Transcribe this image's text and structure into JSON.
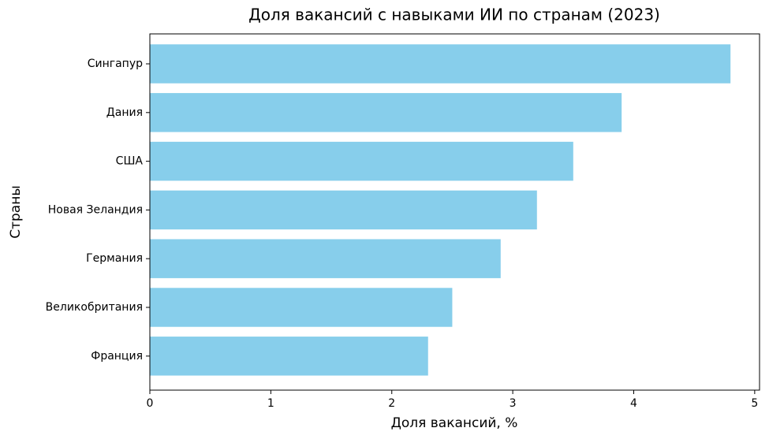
{
  "chart_data": {
    "type": "barh",
    "title": "Доля вакансий с навыками ИИ по странам (2023)",
    "x_label": "Доля вакансий, %",
    "y_label": "Страны",
    "categories": [
      "Сингапур",
      "Дания",
      "США",
      "Новая Зеландия",
      "Германия",
      "Великобритания",
      "Франция"
    ],
    "values": [
      4.8,
      3.9,
      3.5,
      3.2,
      2.9,
      2.5,
      2.3
    ],
    "color": "#87ceeb",
    "xlim": [
      0,
      5.04
    ],
    "xticks": [
      0,
      1,
      2,
      3,
      4,
      5
    ],
    "grid": false
  }
}
